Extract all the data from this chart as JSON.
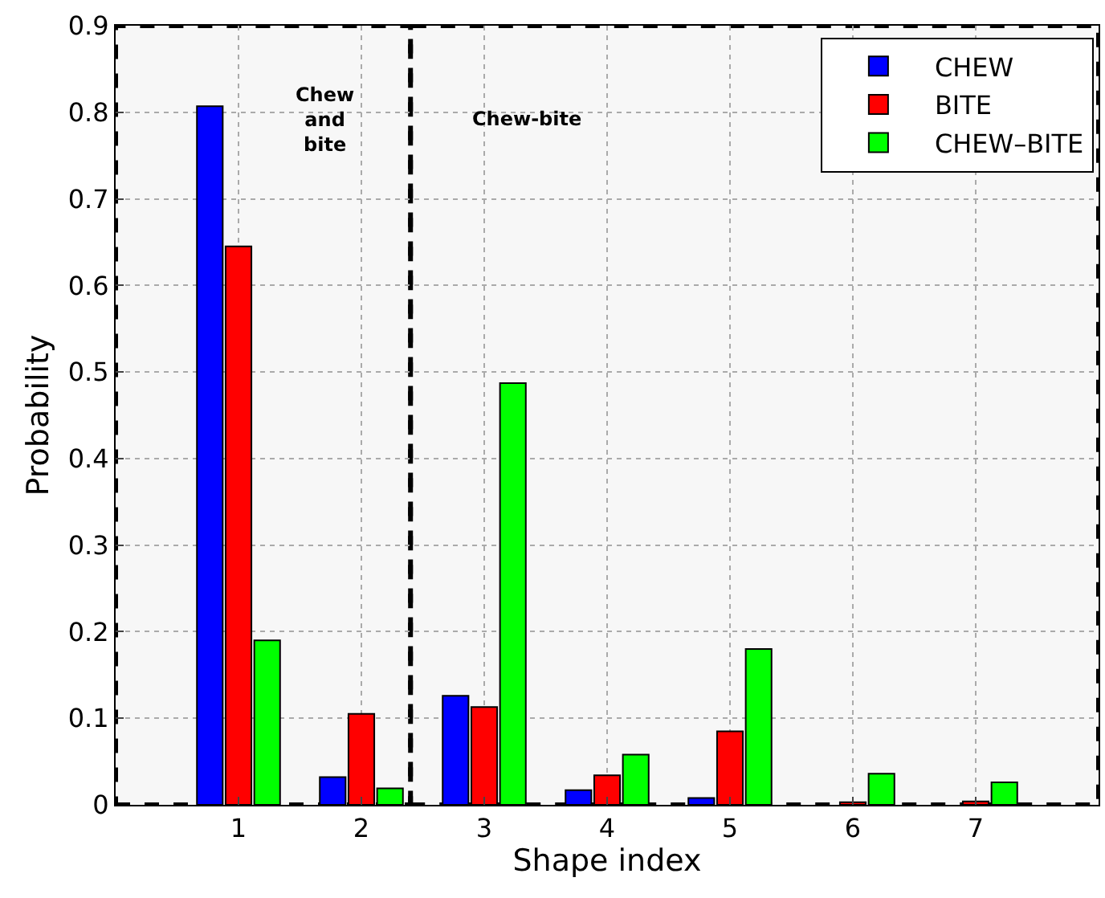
{
  "chart_data": {
    "type": "bar",
    "xlabel": "Shape index",
    "ylabel": "Probability",
    "x": [
      1,
      2,
      3,
      4,
      5,
      6,
      7
    ],
    "series": [
      {
        "name": "CHEW",
        "color": "#0000ff",
        "values": [
          0.807,
          0.032,
          0.126,
          0.017,
          0.008,
          null,
          null
        ]
      },
      {
        "name": "BITE",
        "color": "#ff0000",
        "values": [
          0.645,
          0.105,
          0.113,
          0.034,
          0.085,
          0.003,
          0.004
        ]
      },
      {
        "name": "CHEW–BITE",
        "color": "#00ff00",
        "values": [
          0.19,
          0.019,
          0.487,
          0.058,
          0.18,
          0.036,
          0.026
        ]
      }
    ],
    "xlim": [
      0,
      8
    ],
    "xticks": [
      1,
      2,
      3,
      4,
      5,
      6,
      7
    ],
    "ylim": [
      0,
      0.9
    ],
    "yticks": [
      0,
      0.1,
      0.2,
      0.3,
      0.4,
      0.5,
      0.6,
      0.7,
      0.8,
      0.9
    ],
    "bands": [
      {
        "axis": "x",
        "from": 0,
        "to": 2.4,
        "label": "Chew and bite"
      },
      {
        "axis": "x",
        "from": 2.4,
        "to": 8,
        "label": "Chew-bite"
      }
    ],
    "grid": true,
    "legend": "top right"
  }
}
